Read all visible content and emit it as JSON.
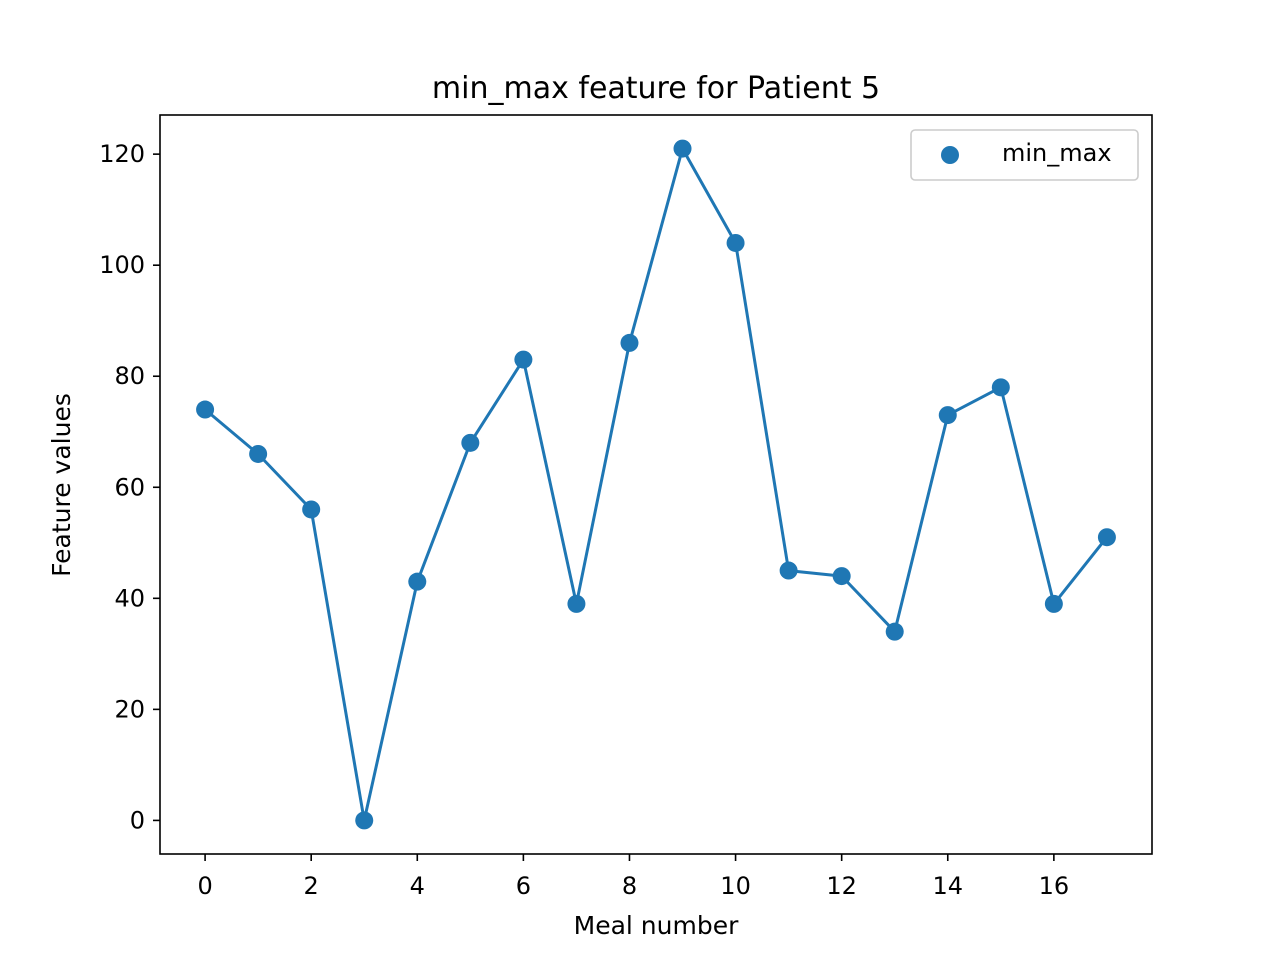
{
  "chart_data": {
    "type": "line",
    "title": "min_max feature for Patient 5",
    "xlabel": "Meal number",
    "ylabel": "Feature values",
    "xlim": [
      -0.85,
      17.85
    ],
    "ylim": [
      -6.05,
      127.05
    ],
    "x_ticks": [
      0,
      2,
      4,
      6,
      8,
      10,
      12,
      14,
      16
    ],
    "y_ticks": [
      0,
      20,
      40,
      60,
      80,
      100,
      120
    ],
    "grid": false,
    "legend_position": "top-right",
    "series": [
      {
        "name": "min_max",
        "color": "#1f77b4",
        "marker": "circle",
        "x": [
          0,
          1,
          2,
          3,
          4,
          5,
          6,
          7,
          8,
          9,
          10,
          11,
          12,
          13,
          14,
          15,
          16,
          17
        ],
        "values": [
          74,
          66,
          56,
          0,
          43,
          68,
          83,
          39,
          86,
          121,
          104,
          45,
          44,
          34,
          73,
          78,
          39,
          51
        ]
      }
    ]
  }
}
